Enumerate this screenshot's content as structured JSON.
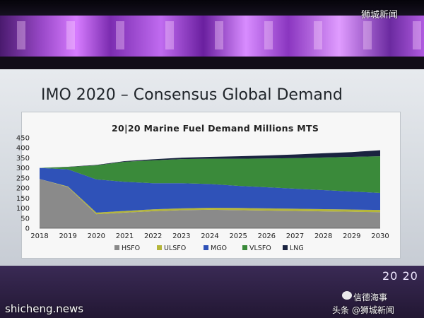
{
  "watermarks": {
    "top_right": "狮城新闻",
    "bottom_left": "shicheng.news",
    "bottom_right_1": "信德海事",
    "bottom_right_2": "头条 @狮城新闻"
  },
  "slide": {
    "title": "IMO 2020 – Consensus Global Demand",
    "logo": "20 20"
  },
  "chart_data": {
    "type": "area",
    "title": "20|20 Marine Fuel Demand Millions MTS",
    "x": [
      2018,
      2019,
      2020,
      2021,
      2022,
      2023,
      2024,
      2025,
      2026,
      2027,
      2028,
      2029,
      2030
    ],
    "ylim": [
      0,
      450
    ],
    "yticks": [
      0,
      50,
      100,
      150,
      200,
      250,
      300,
      350,
      400,
      450
    ],
    "stacked": true,
    "series": [
      {
        "name": "HSFO",
        "color": "#8a8a8a",
        "values": [
          245,
          205,
          70,
          78,
          85,
          90,
          92,
          90,
          88,
          86,
          84,
          82,
          80
        ]
      },
      {
        "name": "ULSFO",
        "color": "#b5b63a",
        "values": [
          0,
          3,
          8,
          8,
          9,
          9,
          10,
          11,
          11,
          11,
          11,
          11,
          11
        ]
      },
      {
        "name": "MGO",
        "color": "#2f52b8",
        "values": [
          55,
          85,
          165,
          145,
          130,
          125,
          118,
          110,
          105,
          100,
          95,
          90,
          85
        ]
      },
      {
        "name": "VLSFO",
        "color": "#3a8a3a",
        "values": [
          0,
          12,
          70,
          100,
          114,
          120,
          126,
          135,
          143,
          152,
          162,
          172,
          182
        ]
      },
      {
        "name": "LNG",
        "color": "#1a2340",
        "values": [
          0,
          1,
          2,
          3,
          5,
          7,
          9,
          12,
          15,
          18,
          21,
          24,
          30
        ]
      }
    ]
  }
}
